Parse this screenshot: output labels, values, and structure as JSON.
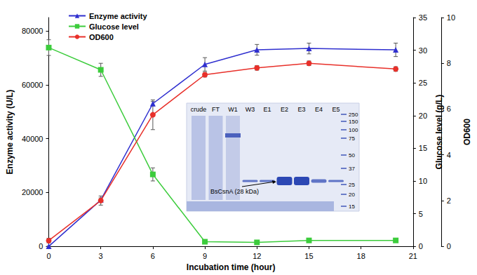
{
  "chart_data": {
    "type": "line",
    "x": [
      0,
      3,
      6,
      9,
      12,
      15,
      20
    ],
    "xlim": [
      0,
      21
    ],
    "xticks": [
      0,
      3,
      6,
      9,
      12,
      15,
      18,
      21
    ],
    "xlabel": "Incubation time (hour)",
    "ylabel": "Enzyme activity (U/L)",
    "ylim": [
      0,
      85000
    ],
    "yticks": [
      0,
      20000,
      40000,
      60000,
      80000
    ],
    "y2label": "Glucose level (g/L)",
    "y2lim": [
      0,
      35
    ],
    "y2ticks": [
      0,
      5,
      10,
      15,
      20,
      25,
      30,
      35
    ],
    "y3label": "OD600",
    "y3lim": [
      0,
      10
    ],
    "y3ticks": [
      0,
      2,
      4,
      6,
      8,
      10
    ],
    "legend": "upper left",
    "grid": false,
    "series": [
      {
        "name": "Enzyme activity",
        "color": "#2f2fcf",
        "marker": "triangle",
        "values": [
          0,
          17200,
          53000,
          67600,
          73000,
          73500,
          73000
        ],
        "errors": [
          0,
          800,
          800,
          2500,
          2000,
          2000,
          2500
        ]
      },
      {
        "name": "Glucose level",
        "color": "#3ccc3c",
        "marker": "square",
        "axis": "y2",
        "values": [
          30.4,
          27,
          11,
          0.7,
          0.6,
          0.9,
          0.9
        ],
        "errors": [
          1.2,
          1.0,
          1.0,
          0.2,
          0.2,
          0.2,
          0.2
        ]
      },
      {
        "name": "OD600",
        "color": "#e8302a",
        "marker": "circle",
        "axis": "y3",
        "values": [
          0.25,
          2.0,
          5.75,
          7.5,
          7.8,
          8.0,
          7.75
        ],
        "errors": [
          0.1,
          0.2,
          0.65,
          0.1,
          0.1,
          0.1,
          0.1
        ]
      }
    ],
    "inset": {
      "lanes": [
        "crude",
        "FT",
        "W1",
        "W3",
        "E1",
        "E2",
        "E3",
        "E4",
        "E5"
      ],
      "markers": [
        250,
        150,
        100,
        75,
        50,
        37,
        25,
        20,
        15
      ],
      "annotation": "BsCsnA (28 kDa)"
    }
  }
}
